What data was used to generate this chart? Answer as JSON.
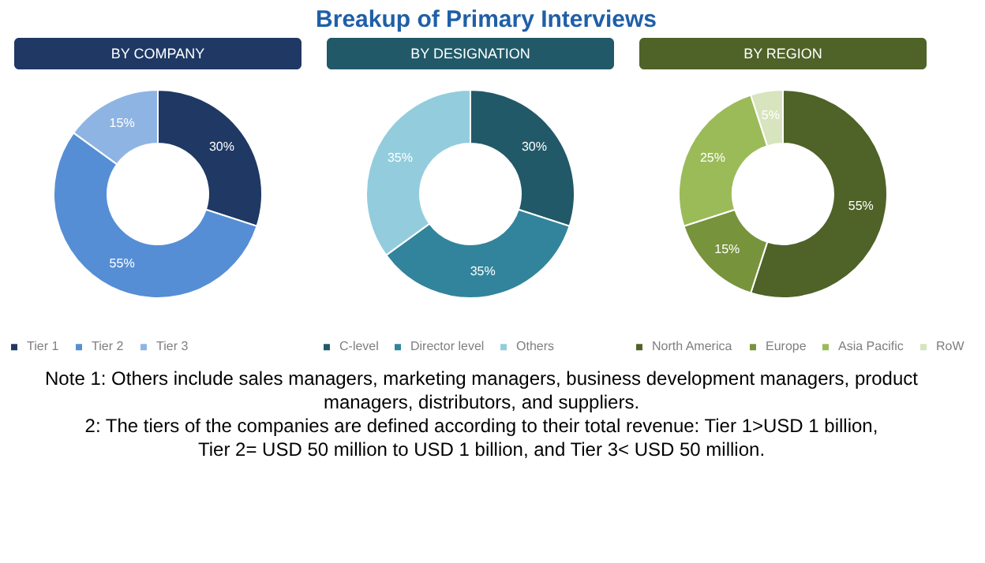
{
  "chart_data": [
    {
      "type": "other",
      "title": "Breakup of Primary Interviews",
      "annotations": [
        "Note 1: Others include sales managers, marketing managers, business development managers, product managers, distributors, and suppliers.",
        "2: The tiers of the companies are defined according to their total revenue: Tier 1>USD 1 billion, Tier 2= USD 50 million to USD 1 billion, and Tier 3< USD 50 million."
      ]
    },
    {
      "type": "donut",
      "title": "BY COMPANY",
      "categories": [
        "Tier 1",
        "Tier 2",
        "Tier 3"
      ],
      "values": [
        30,
        55,
        15
      ],
      "colors": [
        "#1f3864",
        "#558ed5",
        "#8eb4e3"
      ],
      "value_labels": [
        "30%",
        "55%",
        "15%"
      ],
      "legend": "bottom"
    },
    {
      "type": "donut",
      "title": "BY DESIGNATION",
      "categories": [
        "C-level",
        "Director level",
        "Others"
      ],
      "values": [
        30,
        35,
        35
      ],
      "colors": [
        "#215968",
        "#31849b",
        "#93cddd"
      ],
      "value_labels": [
        "30%",
        "35%",
        "35%"
      ],
      "legend": "bottom"
    },
    {
      "type": "donut",
      "title": "BY REGION",
      "categories": [
        "North America",
        "Europe",
        "Asia Pacific",
        "RoW"
      ],
      "values": [
        55,
        15,
        25,
        5
      ],
      "colors": [
        "#4f6228",
        "#77933c",
        "#9bbb59",
        "#d7e4bd"
      ],
      "value_labels": [
        "55%",
        "15%",
        "25%",
        "5%"
      ],
      "legend": "bottom"
    }
  ]
}
